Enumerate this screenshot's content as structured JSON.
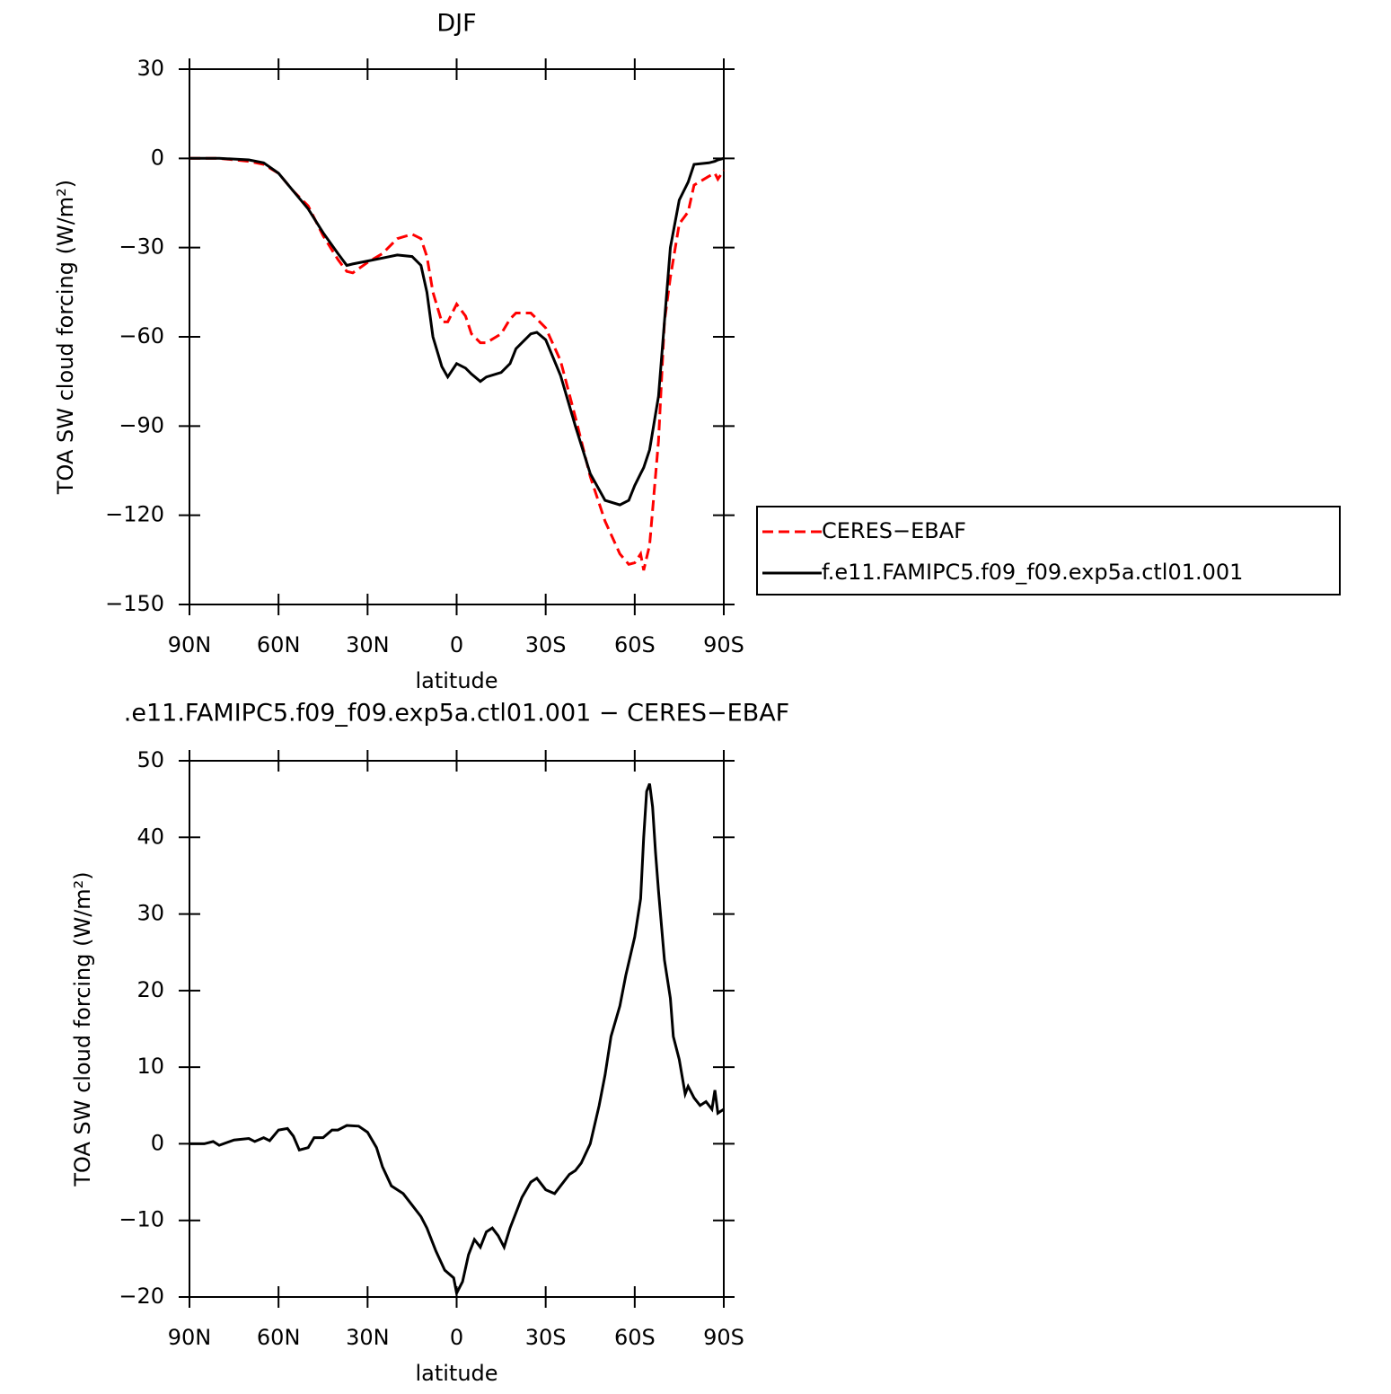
{
  "chart_data": [
    {
      "type": "line",
      "title": "DJF",
      "xlabel": "latitude",
      "ylabel": "TOA SW cloud forcing (W/m²)",
      "xlim": [
        90,
        -90
      ],
      "xticks": [
        {
          "value": 90,
          "label": "90N"
        },
        {
          "value": 60,
          "label": "60N"
        },
        {
          "value": 30,
          "label": "30N"
        },
        0,
        {
          "value": -30,
          "label": "30S"
        },
        {
          "value": -60,
          "label": "60S"
        },
        {
          "value": -90,
          "label": "90S"
        }
      ],
      "ylim": [
        -150,
        30
      ],
      "yticks": [
        30,
        0,
        {
          "value": -30,
          "label": "−30"
        },
        {
          "value": -60,
          "label": "−60"
        },
        {
          "value": -90,
          "label": "−90"
        },
        {
          "value": -120,
          "label": "−120"
        },
        {
          "value": -150,
          "label": "−150"
        }
      ],
      "legend": "right",
      "x": [
        90,
        80,
        70,
        65,
        60,
        55,
        50,
        45,
        40,
        37,
        35,
        30,
        25,
        20,
        15,
        12,
        10,
        8,
        5,
        3,
        0,
        -3,
        -5,
        -8,
        -10,
        -15,
        -18,
        -20,
        -25,
        -27,
        -30,
        -35,
        -40,
        -45,
        -50,
        -55,
        -58,
        -60,
        -62,
        -63,
        -65,
        -68,
        -70,
        -72,
        -75,
        -78,
        -80,
        -85,
        -87,
        -88,
        -90
      ],
      "series": [
        {
          "name": "CERES−EBAF",
          "color": "#ff0000",
          "line_style": "dashed",
          "values": [
            0,
            0,
            -1,
            -2,
            -5,
            -11,
            -16,
            -26,
            -34,
            -38,
            -38.5,
            -35,
            -32,
            -27,
            -25.5,
            -27,
            -33,
            -45,
            -55,
            -55,
            -49,
            -53,
            -59,
            -62,
            -62,
            -59,
            -54,
            -52,
            -52,
            -54,
            -57,
            -68,
            -87,
            -107,
            -122,
            -133,
            -136.5,
            -136,
            -133,
            -138.5,
            -130,
            -95,
            -55,
            -40,
            -22,
            -18,
            -9,
            -6,
            -5,
            -7,
            -4
          ]
        },
        {
          "name": "f.e11.FAMIPC5.f09_f09.exp5a.ctl01.001",
          "color": "#000000",
          "line_style": "solid",
          "values": [
            0,
            0,
            -0.5,
            -1.5,
            -5,
            -11,
            -17,
            -25,
            -32,
            -36,
            -35.5,
            -34.5,
            -33.5,
            -32.5,
            -33,
            -36,
            -45,
            -60,
            -70,
            -73.5,
            -69,
            -70.5,
            -72.5,
            -75,
            -73.5,
            -72,
            -69,
            -64,
            -59,
            -58.5,
            -61,
            -73,
            -90,
            -106,
            -115,
            -116.5,
            -115,
            -110,
            -106,
            -104,
            -98,
            -80,
            -55,
            -30,
            -14,
            -8,
            -2,
            -1.5,
            -1,
            -0.5,
            0
          ]
        }
      ]
    },
    {
      "type": "line",
      "title": ".e11.FAMIPC5.f09_f09.exp5a.ctl01.001 − CERES−EBAF",
      "xlabel": "latitude",
      "ylabel": "TOA SW cloud forcing (W/m²)",
      "xlim": [
        90,
        -90
      ],
      "xticks": [
        {
          "value": 90,
          "label": "90N"
        },
        {
          "value": 60,
          "label": "60N"
        },
        {
          "value": 30,
          "label": "30N"
        },
        0,
        {
          "value": -30,
          "label": "30S"
        },
        {
          "value": -60,
          "label": "60S"
        },
        {
          "value": -90,
          "label": "90S"
        }
      ],
      "ylim": [
        -20,
        50
      ],
      "yticks": [
        50,
        40,
        30,
        20,
        10,
        0,
        {
          "value": -10,
          "label": "−10"
        },
        {
          "value": -20,
          "label": "−20"
        }
      ],
      "x": [
        90,
        85,
        82,
        80,
        75,
        70,
        68,
        65,
        63,
        60,
        57,
        55,
        53,
        50,
        48,
        45,
        42,
        40,
        37,
        33,
        30,
        27,
        25,
        22,
        18,
        15,
        12,
        10,
        7,
        4,
        1,
        0,
        -2,
        -4,
        -6,
        -8,
        -10,
        -12,
        -14,
        -16,
        -18,
        -22,
        -25,
        -27,
        -30,
        -33,
        -35,
        -38,
        -40,
        -42,
        -45,
        -48,
        -50,
        -52,
        -55,
        -57,
        -60,
        -62,
        -63,
        -64,
        -65,
        -66,
        -67,
        -68,
        -70,
        -72,
        -73,
        -75,
        -77,
        -78,
        -80,
        -82,
        -84,
        -86,
        -87,
        -88,
        -90
      ],
      "series": [
        {
          "color": "#000000",
          "line_style": "solid",
          "values": [
            0,
            0,
            0.3,
            -0.2,
            0.5,
            0.7,
            0.3,
            0.8,
            0.4,
            1.8,
            2,
            1,
            -0.8,
            -0.5,
            0.8,
            0.8,
            1.8,
            1.8,
            2.4,
            2.3,
            1.5,
            -0.5,
            -3,
            -5.5,
            -6.5,
            -8,
            -9.5,
            -11,
            -14,
            -16.5,
            -17.5,
            -19.5,
            -18,
            -14.5,
            -12.5,
            -13.5,
            -11.5,
            -11,
            -12,
            -13.5,
            -11,
            -7,
            -5,
            -4.5,
            -6,
            -6.5,
            -5.5,
            -4,
            -3.5,
            -2.5,
            0,
            5,
            9,
            14,
            18,
            22,
            27,
            32,
            40,
            46,
            47,
            44,
            38,
            33,
            24,
            19,
            14,
            11,
            6.5,
            7.5,
            6,
            5,
            5.5,
            4.5,
            7,
            4,
            4.5
          ]
        }
      ]
    }
  ]
}
